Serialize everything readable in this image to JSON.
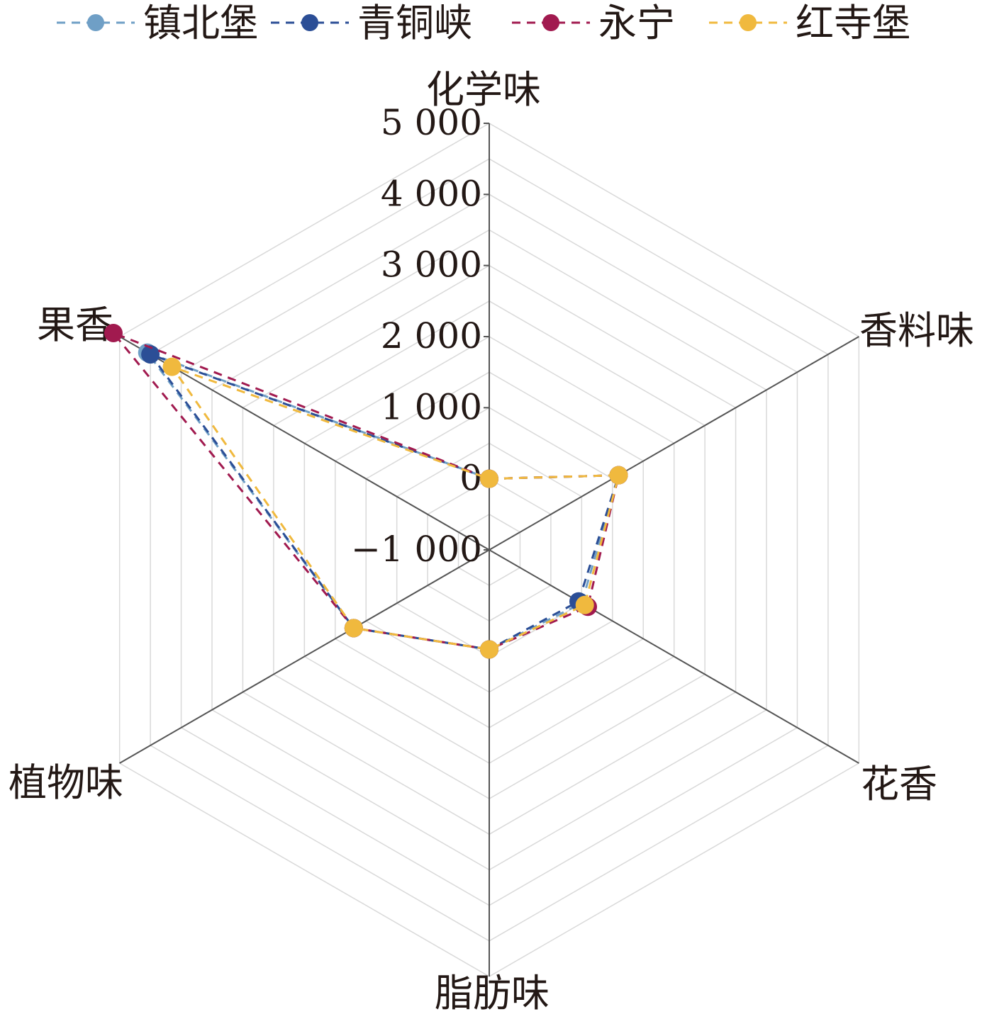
{
  "chart_data": {
    "type": "radar",
    "axes": [
      "化学味",
      "香料味",
      "花香",
      "脂肪味",
      "植物味",
      "果香"
    ],
    "ticks": [
      {
        "value": -1000,
        "label": "−1 000"
      },
      {
        "value": 0,
        "label": "0"
      },
      {
        "value": 1000,
        "label": "1 000"
      },
      {
        "value": 2000,
        "label": "2 000"
      },
      {
        "value": 3000,
        "label": "3 000"
      },
      {
        "value": 4000,
        "label": "4 000"
      },
      {
        "value": 5000,
        "label": "5 000"
      }
    ],
    "range": [
      -1000,
      5000
    ],
    "series": [
      {
        "name": "镇北堡",
        "color": "#6f9fc6",
        "values": [
          0,
          1100,
          500,
          400,
          1200,
          4550
        ]
      },
      {
        "name": "青铜峡",
        "color": "#2b4e96",
        "values": [
          0,
          1100,
          450,
          400,
          1200,
          4500
        ]
      },
      {
        "name": "永宁",
        "color": "#a11a4f",
        "values": [
          0,
          1100,
          600,
          400,
          1200,
          5100
        ]
      },
      {
        "name": "红寺堡",
        "color": "#f0b93e",
        "values": [
          0,
          1100,
          550,
          400,
          1200,
          4150
        ]
      }
    ],
    "legend_position": "top",
    "grid": true
  }
}
